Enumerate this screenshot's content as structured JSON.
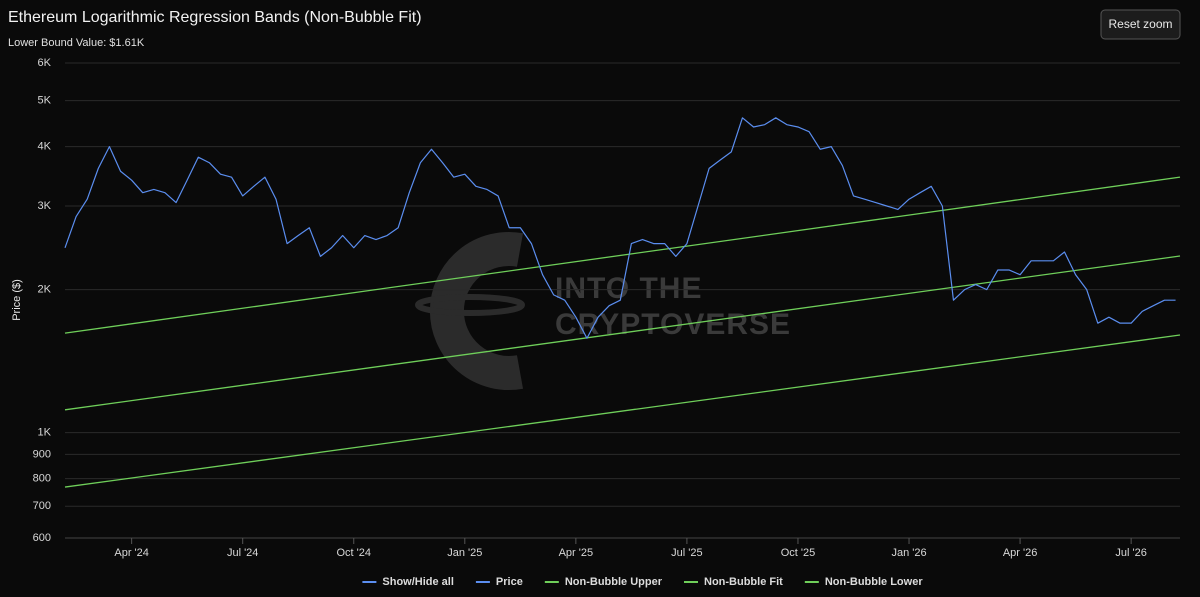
{
  "chart_data": {
    "type": "line",
    "title": "Ethereum Logarithmic Regression Bands (Non-Bubble Fit)",
    "subtitle": "Lower Bound Value: $1.61K",
    "y_label": "Price ($)",
    "reset_button": "Reset zoom",
    "legend_toggle_all": "Show/Hide all",
    "watermark": [
      "INTO THE",
      "CRYPTOVERSE"
    ],
    "log_scale": true,
    "grid": true,
    "xlim": [
      2024.1,
      2026.61
    ],
    "xticks": [
      {
        "value": 2024.25,
        "label": "Apr '24"
      },
      {
        "value": 2024.5,
        "label": "Jul '24"
      },
      {
        "value": 2024.75,
        "label": "Oct '24"
      },
      {
        "value": 2025.0,
        "label": "Jan '25"
      },
      {
        "value": 2025.25,
        "label": "Apr '25"
      },
      {
        "value": 2025.5,
        "label": "Jul '25"
      },
      {
        "value": 2025.75,
        "label": "Oct '25"
      },
      {
        "value": 2026.0,
        "label": "Jan '26"
      },
      {
        "value": 2026.25,
        "label": "Apr '26"
      },
      {
        "value": 2026.5,
        "label": "Jul '26"
      }
    ],
    "ylim": [
      600,
      6000
    ],
    "yticks": [
      600,
      700,
      800,
      900,
      {
        "value": 1000,
        "label": "1K"
      },
      {
        "value": 2000,
        "label": "2K"
      },
      {
        "value": 3000,
        "label": "3K"
      },
      {
        "value": 4000,
        "label": "4K"
      },
      {
        "value": 5000,
        "label": "5K"
      },
      {
        "value": 6000,
        "label": "6K"
      }
    ],
    "series": [
      {
        "name": "Price",
        "color": "#5b8ef0",
        "x": [
          2024.1,
          2024.125,
          2024.15,
          2024.175,
          2024.2,
          2024.225,
          2024.25,
          2024.275,
          2024.3,
          2024.325,
          2024.35,
          2024.375,
          2024.4,
          2024.425,
          2024.45,
          2024.475,
          2024.5,
          2024.525,
          2024.55,
          2024.575,
          2024.6,
          2024.625,
          2024.65,
          2024.675,
          2024.7,
          2024.725,
          2024.75,
          2024.775,
          2024.8,
          2024.825,
          2024.85,
          2024.875,
          2024.9,
          2024.925,
          2024.95,
          2024.975,
          2025.0,
          2025.025,
          2025.05,
          2025.075,
          2025.1,
          2025.125,
          2025.15,
          2025.175,
          2025.2,
          2025.225,
          2025.25,
          2025.275,
          2025.3,
          2025.325,
          2025.35,
          2025.375,
          2025.4,
          2025.425,
          2025.45,
          2025.475,
          2025.5,
          2025.525,
          2025.55,
          2025.575,
          2025.6,
          2025.625,
          2025.65,
          2025.675,
          2025.7,
          2025.725,
          2025.75,
          2025.775,
          2025.8,
          2025.825,
          2025.85,
          2025.875,
          2025.9,
          2025.925,
          2025.95,
          2025.975,
          2026.0,
          2026.025,
          2026.05,
          2026.075,
          2026.1,
          2026.125,
          2026.15,
          2026.175,
          2026.2,
          2026.225,
          2026.25,
          2026.275,
          2026.3,
          2026.325,
          2026.35,
          2026.375,
          2026.4,
          2026.425,
          2026.45,
          2026.475,
          2026.5,
          2026.525,
          2026.55,
          2026.575,
          2026.6
        ],
        "values": [
          2450,
          2850,
          3100,
          3600,
          4000,
          3550,
          3400,
          3200,
          3250,
          3200,
          3050,
          3400,
          3800,
          3700,
          3500,
          3450,
          3150,
          3300,
          3450,
          3100,
          2500,
          2600,
          2700,
          2350,
          2450,
          2600,
          2450,
          2600,
          2550,
          2600,
          2700,
          3200,
          3700,
          3950,
          3700,
          3450,
          3500,
          3300,
          3250,
          3150,
          2700,
          2700,
          2500,
          2150,
          1950,
          1900,
          1750,
          1580,
          1750,
          1850,
          1900,
          2500,
          2550,
          2500,
          2500,
          2350,
          2500,
          3000,
          3600,
          3750,
          3900,
          4600,
          4400,
          4450,
          4600,
          4450,
          4400,
          4300,
          3950,
          4000,
          3650,
          3150,
          3100,
          3050,
          3000,
          2950,
          3100,
          3200,
          3300,
          3000,
          1900,
          2000,
          2050,
          2000,
          2200,
          2200,
          2150,
          2300,
          2300,
          2300,
          2400,
          2150,
          2000,
          1700,
          1750,
          1700,
          1700,
          1800,
          1850,
          1900,
          1900
        ]
      },
      {
        "name": "Non-Bubble Upper",
        "color": "#6fcf5a",
        "x": [
          2024.1,
          2026.61
        ],
        "values": [
          1620,
          3450
        ]
      },
      {
        "name": "Non-Bubble Fit",
        "color": "#6fcf5a",
        "x": [
          2024.1,
          2026.61
        ],
        "values": [
          1117,
          2354
        ]
      },
      {
        "name": "Non-Bubble Lower",
        "color": "#6fcf5a",
        "x": [
          2024.1,
          2026.61
        ],
        "values": [
          768,
          1605
        ]
      }
    ]
  }
}
